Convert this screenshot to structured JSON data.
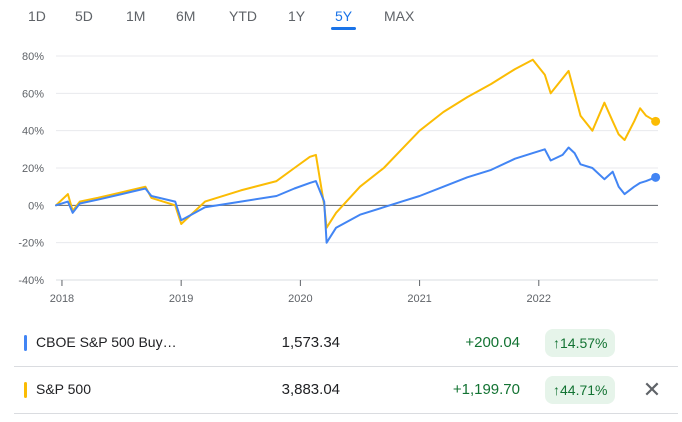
{
  "range_tabs": [
    "1D",
    "5D",
    "1M",
    "6M",
    "YTD",
    "1Y",
    "5Y",
    "MAX"
  ],
  "active_tab": "5Y",
  "colors": {
    "cboe": "#4285f4",
    "sp500": "#fbbc04",
    "positive": "#137333",
    "accent": "#1a73e8"
  },
  "chart_data": {
    "type": "line",
    "x_tick_labels": [
      "2018",
      "2019",
      "2020",
      "2021",
      "2022"
    ],
    "y_tick_labels": [
      "80%",
      "60%",
      "40%",
      "20%",
      "0%",
      "-20%",
      "-40%"
    ],
    "ylim": [
      -40,
      80
    ],
    "y_unit": "%",
    "xlim": [
      2017.95,
      2023.0
    ],
    "baseline": 0,
    "series": [
      {
        "name": "CBOE S&P 500 Buy…",
        "color": "#4285f4",
        "x": [
          2017.95,
          2018.05,
          2018.09,
          2018.15,
          2018.3,
          2018.5,
          2018.7,
          2018.75,
          2018.95,
          2019.0,
          2019.2,
          2019.5,
          2019.8,
          2019.95,
          2020.08,
          2020.13,
          2020.2,
          2020.22,
          2020.3,
          2020.5,
          2020.7,
          2020.85,
          2021.0,
          2021.2,
          2021.4,
          2021.6,
          2021.8,
          2021.95,
          2022.05,
          2022.1,
          2022.2,
          2022.25,
          2022.3,
          2022.35,
          2022.45,
          2022.55,
          2022.62,
          2022.67,
          2022.72,
          2022.8,
          2022.85,
          2022.9,
          2022.98
        ],
        "values": [
          0,
          2,
          -4,
          1,
          3,
          6,
          9,
          5,
          2,
          -8,
          -1,
          2,
          5,
          9,
          12,
          13,
          2,
          -20,
          -12,
          -5,
          -1,
          2,
          5,
          10,
          15,
          19,
          25,
          28,
          30,
          24,
          27,
          31,
          28,
          22,
          20,
          14,
          18,
          10,
          6,
          10,
          12,
          13,
          15
        ]
      },
      {
        "name": "S&P 500",
        "color": "#fbbc04",
        "x": [
          2017.95,
          2018.05,
          2018.09,
          2018.15,
          2018.3,
          2018.5,
          2018.7,
          2018.75,
          2018.95,
          2019.0,
          2019.2,
          2019.5,
          2019.8,
          2019.95,
          2020.08,
          2020.13,
          2020.2,
          2020.22,
          2020.3,
          2020.5,
          2020.7,
          2020.85,
          2021.0,
          2021.2,
          2021.4,
          2021.6,
          2021.8,
          2021.95,
          2022.05,
          2022.1,
          2022.2,
          2022.25,
          2022.3,
          2022.35,
          2022.45,
          2022.55,
          2022.62,
          2022.67,
          2022.72,
          2022.8,
          2022.85,
          2022.9,
          2022.98
        ],
        "values": [
          0,
          6,
          -3,
          2,
          4,
          7,
          10,
          4,
          0,
          -10,
          2,
          8,
          13,
          20,
          26,
          27,
          0,
          -12,
          -4,
          10,
          20,
          30,
          40,
          50,
          58,
          65,
          73,
          78,
          70,
          60,
          68,
          72,
          60,
          48,
          40,
          55,
          45,
          38,
          35,
          45,
          52,
          48,
          45
        ]
      }
    ]
  },
  "rows": [
    {
      "name": "CBOE S&P 500 Buy…",
      "price": "1,573.34",
      "change": "+200.04",
      "pct": "↑14.57%",
      "color": "#4285f4",
      "has_close": false
    },
    {
      "name": "S&P 500",
      "price": "3,883.04",
      "change": "+1,199.70",
      "pct": "↑44.71%",
      "color": "#fbbc04",
      "has_close": true,
      "close_icon": "✕"
    }
  ]
}
